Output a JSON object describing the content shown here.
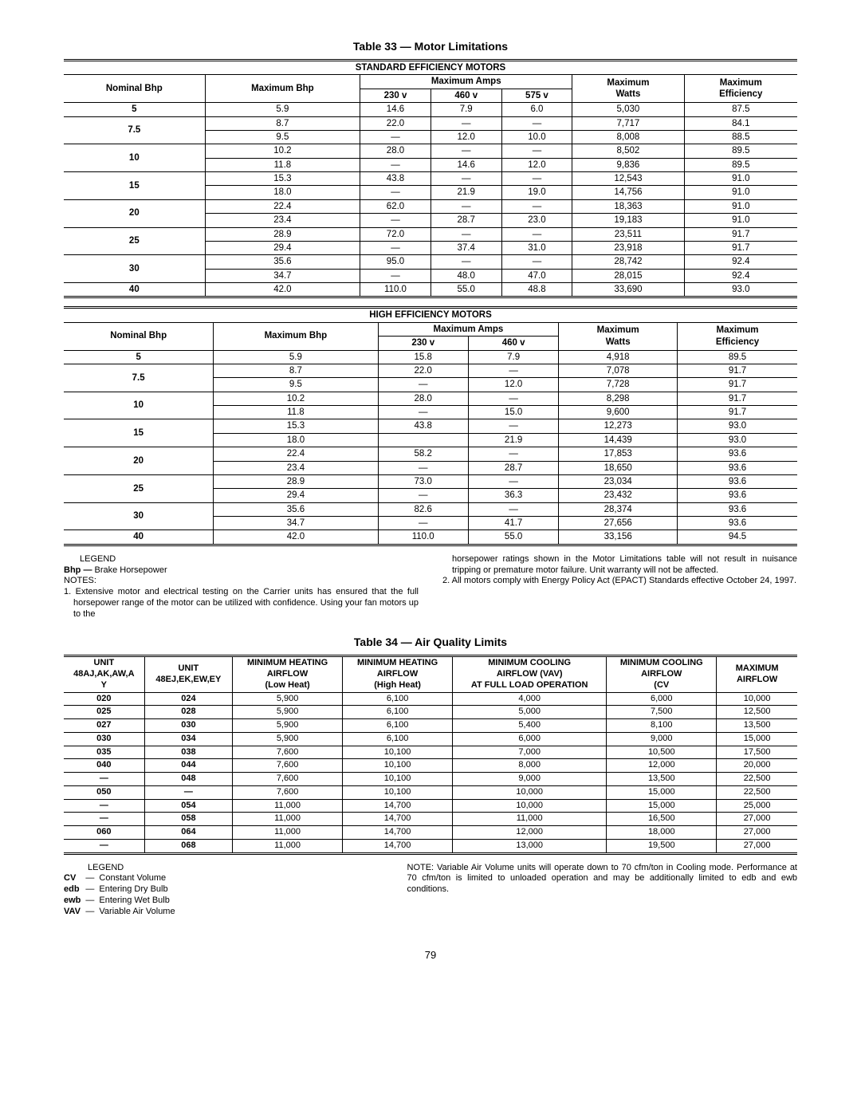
{
  "page_number": "79",
  "table33": {
    "title": "Table 33 — Motor Limitations",
    "standard_header": "STANDARD EFFICIENCY MOTORS",
    "high_header": "HIGH EFFICIENCY MOTORS",
    "cols": {
      "nominal_bhp": "Nominal Bhp",
      "max_bhp": "Maximum Bhp",
      "max_amps": "Maximum Amps",
      "v230": "230 v",
      "v460": "460 v",
      "v575": "575 v",
      "max_watts": "Maximum\nWatts",
      "max_eff": "Maximum\nEfficiency"
    },
    "standard_rows": [
      {
        "nom": "5",
        "rows": [
          [
            "5.9",
            "14.6",
            "7.9",
            "6.0",
            "5,030",
            "87.5"
          ]
        ]
      },
      {
        "nom": "7.5",
        "rows": [
          [
            "8.7",
            "22.0",
            "—",
            "—",
            "7,717",
            "84.1"
          ],
          [
            "9.5",
            "—",
            "12.0",
            "10.0",
            "8,008",
            "88.5"
          ]
        ]
      },
      {
        "nom": "10",
        "rows": [
          [
            "10.2",
            "28.0",
            "—",
            "—",
            "8,502",
            "89.5"
          ],
          [
            "11.8",
            "—",
            "14.6",
            "12.0",
            "9,836",
            "89.5"
          ]
        ]
      },
      {
        "nom": "15",
        "rows": [
          [
            "15.3",
            "43.8",
            "—",
            "—",
            "12,543",
            "91.0"
          ],
          [
            "18.0",
            "—",
            "21.9",
            "19.0",
            "14,756",
            "91.0"
          ]
        ]
      },
      {
        "nom": "20",
        "rows": [
          [
            "22.4",
            "62.0",
            "—",
            "—",
            "18,363",
            "91.0"
          ],
          [
            "23.4",
            "—",
            "28.7",
            "23.0",
            "19,183",
            "91.0"
          ]
        ]
      },
      {
        "nom": "25",
        "rows": [
          [
            "28.9",
            "72.0",
            "—",
            "—",
            "23,511",
            "91.7"
          ],
          [
            "29.4",
            "—",
            "37.4",
            "31.0",
            "23,918",
            "91.7"
          ]
        ]
      },
      {
        "nom": "30",
        "rows": [
          [
            "35.6",
            "95.0",
            "—",
            "—",
            "28,742",
            "92.4"
          ],
          [
            "34.7",
            "—",
            "48.0",
            "47.0",
            "28,015",
            "92.4"
          ]
        ]
      },
      {
        "nom": "40",
        "rows": [
          [
            "42.0",
            "110.0",
            "55.0",
            "48.8",
            "33,690",
            "93.0"
          ]
        ]
      }
    ],
    "high_rows": [
      {
        "nom": "5",
        "rows": [
          [
            "5.9",
            "15.8",
            "7.9",
            "4,918",
            "89.5"
          ]
        ]
      },
      {
        "nom": "7.5",
        "rows": [
          [
            "8.7",
            "22.0",
            "—",
            "7,078",
            "91.7"
          ],
          [
            "9.5",
            "—",
            "12.0",
            "7,728",
            "91.7"
          ]
        ]
      },
      {
        "nom": "10",
        "rows": [
          [
            "10.2",
            "28.0",
            "—",
            "8,298",
            "91.7"
          ],
          [
            "11.8",
            "—",
            "15.0",
            "9,600",
            "91.7"
          ]
        ]
      },
      {
        "nom": "15",
        "rows": [
          [
            "15.3",
            "43.8",
            "—",
            "12,273",
            "93.0"
          ],
          [
            "18.0",
            "",
            "21.9",
            "14,439",
            "93.0"
          ]
        ]
      },
      {
        "nom": "20",
        "rows": [
          [
            "22.4",
            "58.2",
            "—",
            "17,853",
            "93.6"
          ],
          [
            "23.4",
            "—",
            "28.7",
            "18,650",
            "93.6"
          ]
        ]
      },
      {
        "nom": "25",
        "rows": [
          [
            "28.9",
            "73.0",
            "—",
            "23,034",
            "93.6"
          ],
          [
            "29.4",
            "—",
            "36.3",
            "23,432",
            "93.6"
          ]
        ]
      },
      {
        "nom": "30",
        "rows": [
          [
            "35.6",
            "82.6",
            "—",
            "28,374",
            "93.6"
          ],
          [
            "34.7",
            "—",
            "41.7",
            "27,656",
            "93.6"
          ]
        ]
      },
      {
        "nom": "40",
        "rows": [
          [
            "42.0",
            "110.0",
            "55.0",
            "33,156",
            "94.5"
          ]
        ]
      }
    ]
  },
  "legend33": {
    "legend_label": "LEGEND",
    "bhp_label": "Bhp —",
    "bhp_text": "Brake Horsepower",
    "notes_label": "NOTES:",
    "note1": "1. Extensive motor and electrical testing on the Carrier units has ensured that the full horsepower range of the motor can be utilized with confidence. Using your fan motors up to the",
    "note1b": "horsepower ratings shown in the Motor Limitations table will not result in nuisance tripping or premature motor failure. Unit warranty will not be affected.",
    "note2": "2. All motors comply with Energy Policy Act (EPACT) Standards effective October 24, 1997."
  },
  "table34": {
    "title": "Table 34 — Air Quality Limits",
    "cols": {
      "unit1": "UNIT\n48AJ,AK,AW,A\nY",
      "unit2": "UNIT\n48EJ,EK,EW,EY",
      "min_heat_low": "MINIMUM HEATING\nAIRFLOW\n(Low Heat)",
      "min_heat_high": "MINIMUM HEATING\nAIRFLOW\n(High Heat)",
      "min_cool_vav": "MINIMUM COOLING\nAIRFLOW (VAV)\nAT FULL LOAD OPERATION",
      "min_cool_cv": "MINIMUM COOLING\nAIRFLOW\n(CV",
      "max_air": "MAXIMUM\nAIRFLOW"
    },
    "rows": [
      [
        "020",
        "024",
        "5,900",
        "6,100",
        "4,000",
        "6,000",
        "10,000"
      ],
      [
        "025",
        "028",
        "5,900",
        "6,100",
        "5,000",
        "7,500",
        "12,500"
      ],
      [
        "027",
        "030",
        "5,900",
        "6,100",
        "5,400",
        "8,100",
        "13,500"
      ],
      [
        "030",
        "034",
        "5,900",
        "6,100",
        "6,000",
        "9,000",
        "15,000"
      ],
      [
        "035",
        "038",
        "7,600",
        "10,100",
        "7,000",
        "10,500",
        "17,500"
      ],
      [
        "040",
        "044",
        "7,600",
        "10,100",
        "8,000",
        "12,000",
        "20,000"
      ],
      [
        "—",
        "048",
        "7,600",
        "10,100",
        "9,000",
        "13,500",
        "22,500"
      ],
      [
        "050",
        "—",
        "7,600",
        "10,100",
        "10,000",
        "15,000",
        "22,500"
      ],
      [
        "—",
        "054",
        "11,000",
        "14,700",
        "10,000",
        "15,000",
        "25,000"
      ],
      [
        "—",
        "058",
        "11,000",
        "14,700",
        "11,000",
        "16,500",
        "27,000"
      ],
      [
        "060",
        "064",
        "11,000",
        "14,700",
        "12,000",
        "18,000",
        "27,000"
      ],
      [
        "—",
        "068",
        "11,000",
        "14,700",
        "13,000",
        "19,500",
        "27,000"
      ]
    ]
  },
  "legend34": {
    "legend_label": "LEGEND",
    "items": [
      [
        "CV",
        "—",
        "Constant Volume"
      ],
      [
        "edb",
        "—",
        "Entering Dry Bulb"
      ],
      [
        "ewb",
        "—",
        "Entering Wet Bulb"
      ],
      [
        "VAV",
        "—",
        "Variable Air Volume"
      ]
    ],
    "note": "NOTE: Variable Air Volume units will operate down to 70 cfm/ton in Cooling mode. Performance at 70 cfm/ton is limited to unloaded operation and may be additionally limited to edb and ewb conditions."
  }
}
